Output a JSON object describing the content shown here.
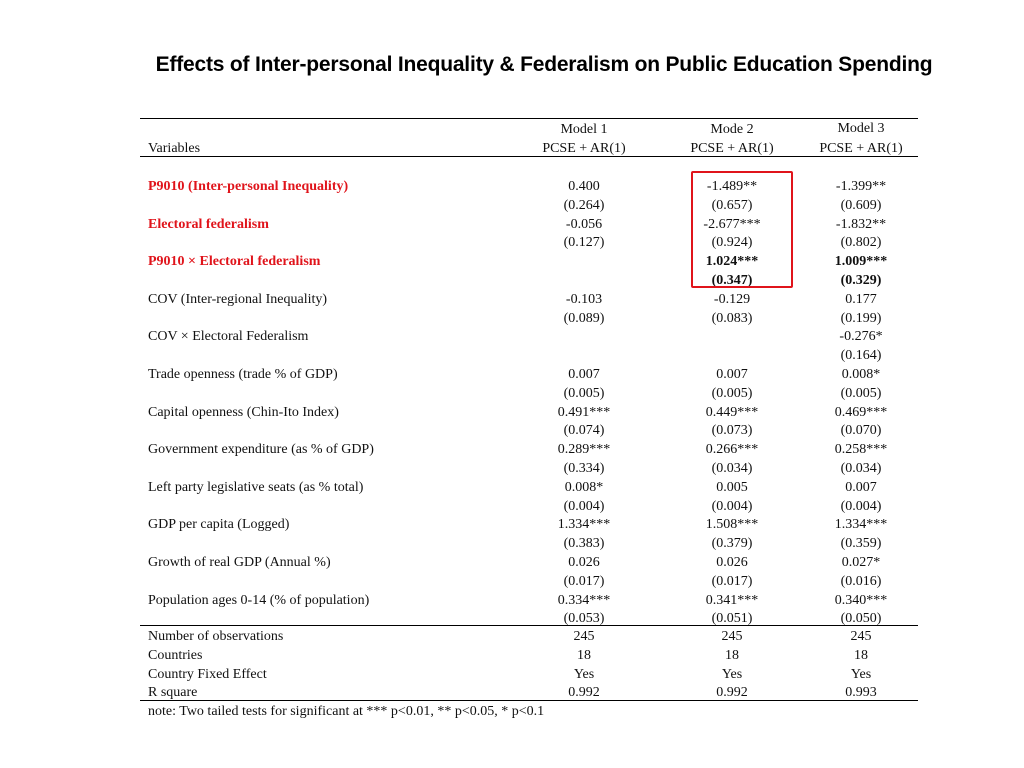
{
  "title": "Effects of Inter-personal Inequality & Federalism on Public Education Spending",
  "header": {
    "variables_label": "Variables",
    "models": [
      "Model 1",
      "Mode 2",
      "Model 3"
    ],
    "methods": [
      "PCSE + AR(1)",
      "PCSE + AR(1)",
      "PCSE + AR(1)"
    ]
  },
  "rows": [
    {
      "label": "P9010 (Inter-personal Inequality)",
      "style": "red",
      "coef": [
        "0.400",
        "-1.489**",
        "-1.399**"
      ],
      "se": [
        "(0.264)",
        "(0.657)",
        "(0.609)"
      ]
    },
    {
      "label": "Electoral federalism",
      "style": "red",
      "coef": [
        "-0.056",
        "-2.677***",
        "-1.832**"
      ],
      "se": [
        "(0.127)",
        "(0.924)",
        "(0.802)"
      ]
    },
    {
      "label": "P9010  ×  Electoral federalism",
      "style": "red",
      "coef": [
        "",
        "1.024***",
        "1.009***"
      ],
      "se": [
        "",
        "(0.347)",
        "(0.329)"
      ],
      "bold_values": true
    },
    {
      "label": "COV (Inter-regional Inequality)",
      "style": "normal",
      "coef": [
        "-0.103",
        "-0.129",
        "0.177"
      ],
      "se": [
        "(0.089)",
        "(0.083)",
        "(0.199)"
      ]
    },
    {
      "label": "COV  ×  Electoral Federalism",
      "style": "normal",
      "coef": [
        "",
        "",
        "-0.276*"
      ],
      "se": [
        "",
        "",
        "(0.164)"
      ]
    },
    {
      "label": "Trade openness (trade % of GDP)",
      "style": "normal",
      "coef": [
        "0.007",
        "0.007",
        "0.008*"
      ],
      "se": [
        "(0.005)",
        "(0.005)",
        "(0.005)"
      ]
    },
    {
      "label": "Capital openness (Chin-Ito Index)",
      "style": "normal",
      "coef": [
        "0.491***",
        "0.449***",
        "0.469***"
      ],
      "se": [
        "(0.074)",
        "(0.073)",
        "(0.070)"
      ]
    },
    {
      "label": "Government expenditure (as % of GDP)",
      "style": "normal",
      "coef": [
        "0.289***",
        "0.266***",
        "0.258***"
      ],
      "se": [
        "(0.334)",
        "(0.034)",
        "(0.034)"
      ]
    },
    {
      "label": "Left party legislative seats (as % total)",
      "style": "normal",
      "coef": [
        "0.008*",
        "0.005",
        "0.007"
      ],
      "se": [
        "(0.004)",
        "(0.004)",
        "(0.004)"
      ]
    },
    {
      "label": "GDP per capita (Logged)",
      "style": "normal",
      "coef": [
        "1.334***",
        "1.508***",
        "1.334***"
      ],
      "se": [
        "(0.383)",
        "(0.379)",
        "(0.359)"
      ]
    },
    {
      "label": "Growth of real GDP (Annual %)",
      "style": "normal",
      "coef": [
        "0.026",
        "0.026",
        "0.027*"
      ],
      "se": [
        "(0.017)",
        "(0.017)",
        "(0.016)"
      ]
    },
    {
      "label": "Population ages 0-14 (% of population)",
      "style": "normal",
      "coef": [
        "0.334***",
        "0.341***",
        "0.340***"
      ],
      "se": [
        "(0.053)",
        "(0.051)",
        "(0.050)"
      ]
    }
  ],
  "stats": [
    {
      "label": "Number of observations",
      "values": [
        "245",
        "245",
        "245"
      ]
    },
    {
      "label": "Countries",
      "values": [
        "18",
        "18",
        "18"
      ]
    },
    {
      "label": "Country Fixed Effect",
      "values": [
        "Yes",
        "Yes",
        "Yes"
      ]
    },
    {
      "label": "R square",
      "values": [
        "0.992",
        "0.992",
        "0.993"
      ]
    }
  ],
  "note": "note:  Two tailed tests for significant at *** p<0.01, ** p<0.05, * p<0.1",
  "highlight_color": "#e0141b"
}
